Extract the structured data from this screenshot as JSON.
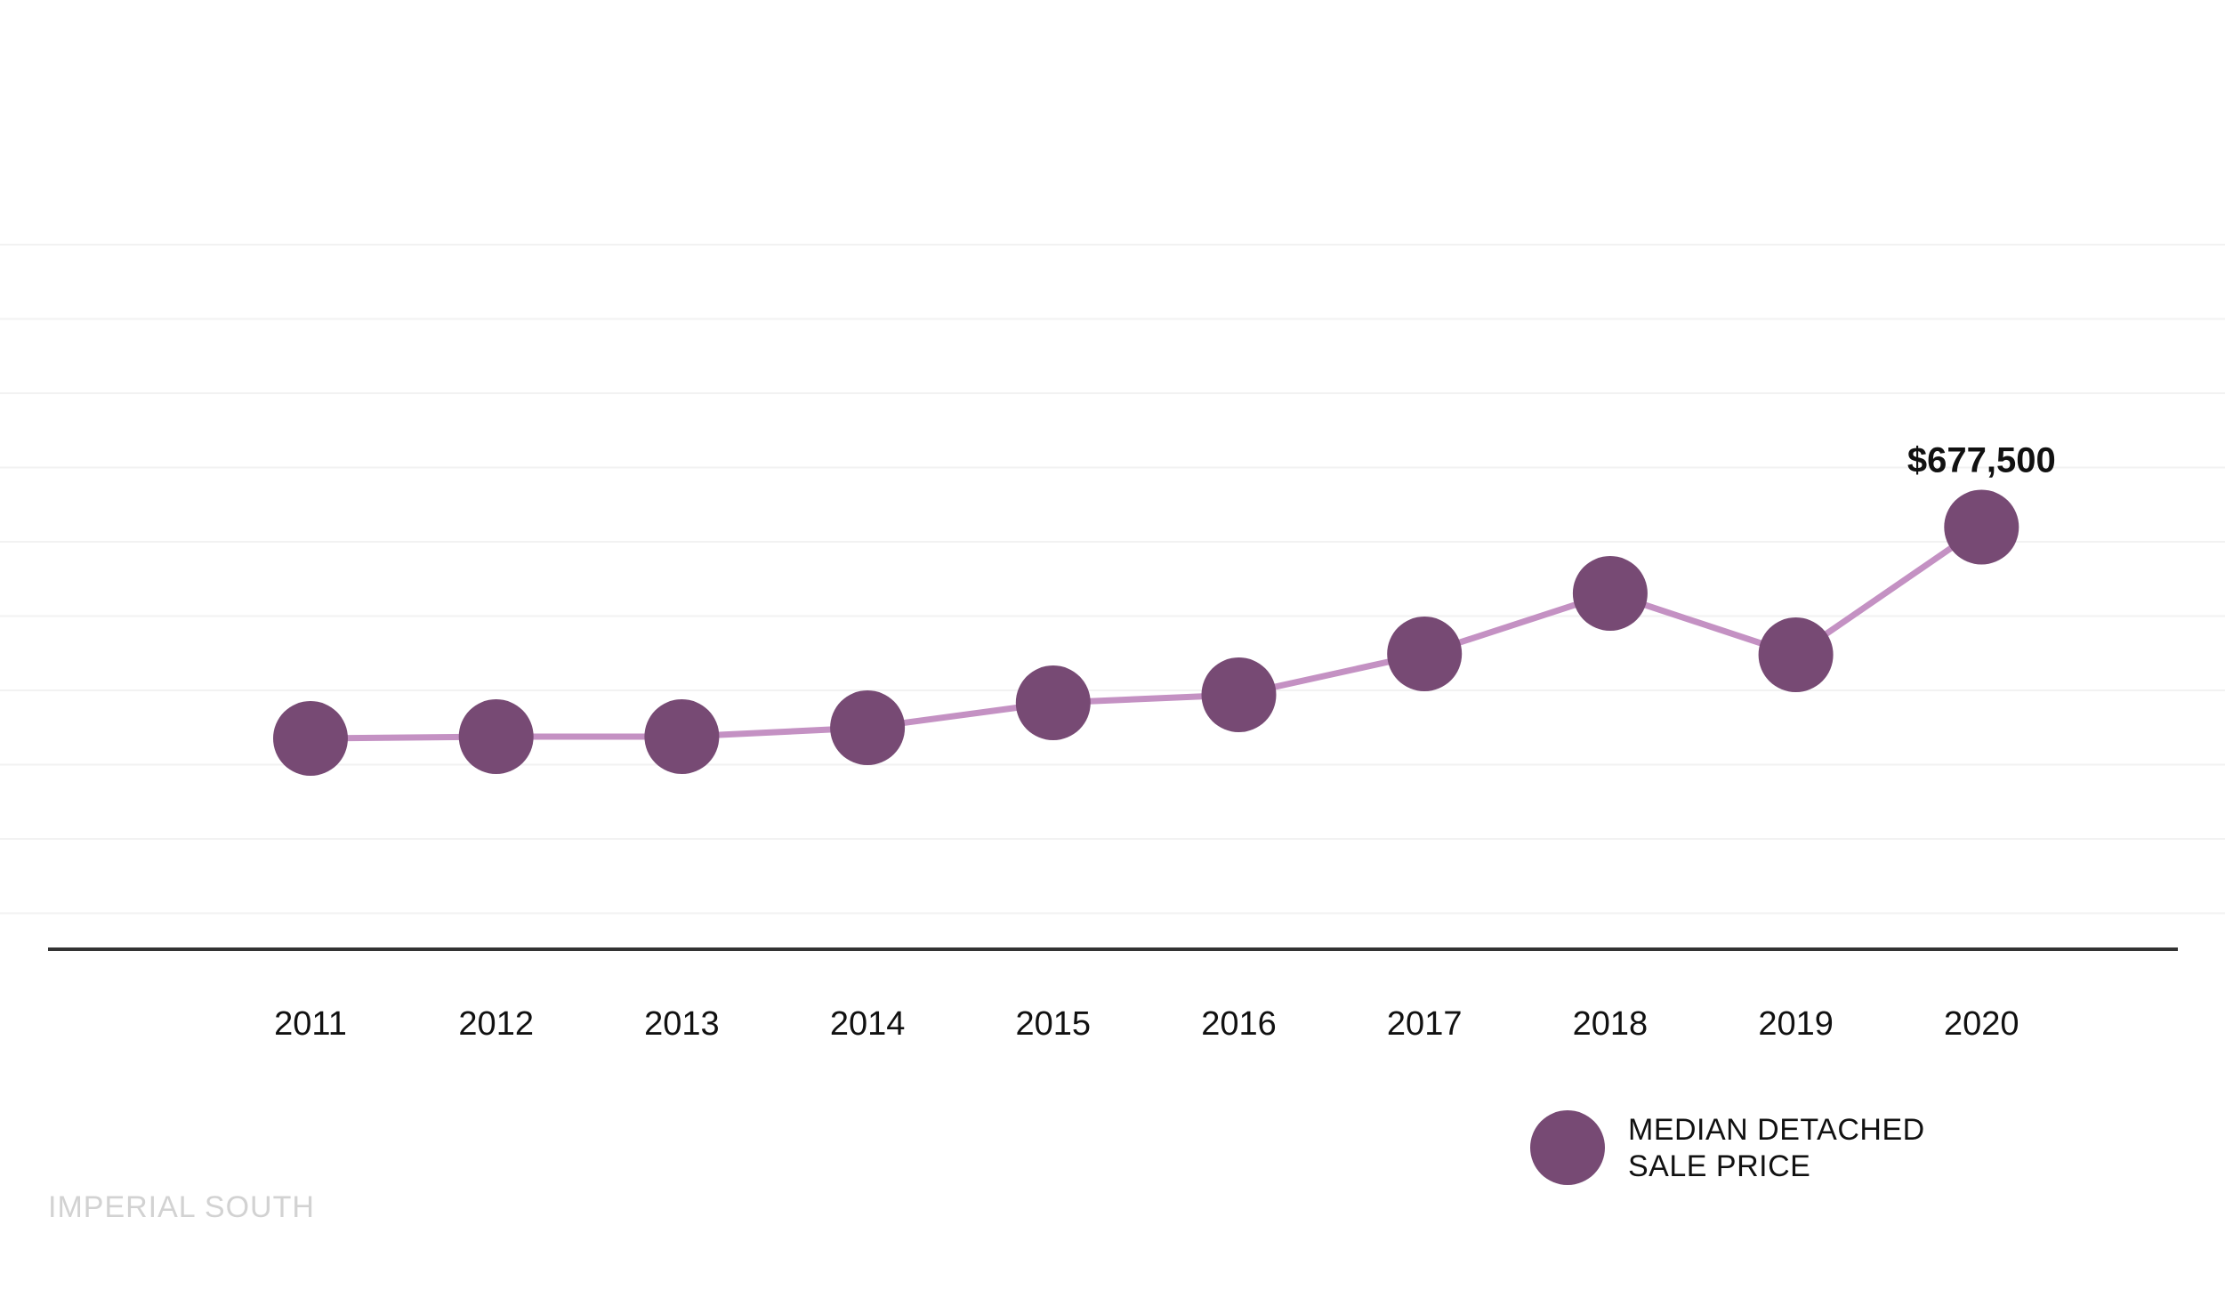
{
  "chart_data": {
    "type": "line",
    "categories": [
      "2011",
      "2012",
      "2013",
      "2014",
      "2015",
      "2016",
      "2017",
      "2018",
      "2019",
      "2020"
    ],
    "series": [
      {
        "name": "MEDIAN DETACHED SALE PRICE",
        "values": [
          440000,
          442000,
          442000,
          452000,
          480000,
          489000,
          535000,
          603000,
          534000,
          677500
        ]
      }
    ],
    "annotations": [
      {
        "category": "2020",
        "text": "$677,500"
      }
    ],
    "title": "",
    "xlabel": "",
    "ylabel": "",
    "grid": true,
    "legend_position": "bottom-right",
    "colors": {
      "marker": "#774a74",
      "line": "#c491c3",
      "axis": "#333333",
      "grid": "#f2f2f2"
    }
  },
  "legend": {
    "line1": "MEDIAN DETACHED",
    "line2": "SALE PRICE"
  },
  "source": "IMPERIAL SOUTH"
}
